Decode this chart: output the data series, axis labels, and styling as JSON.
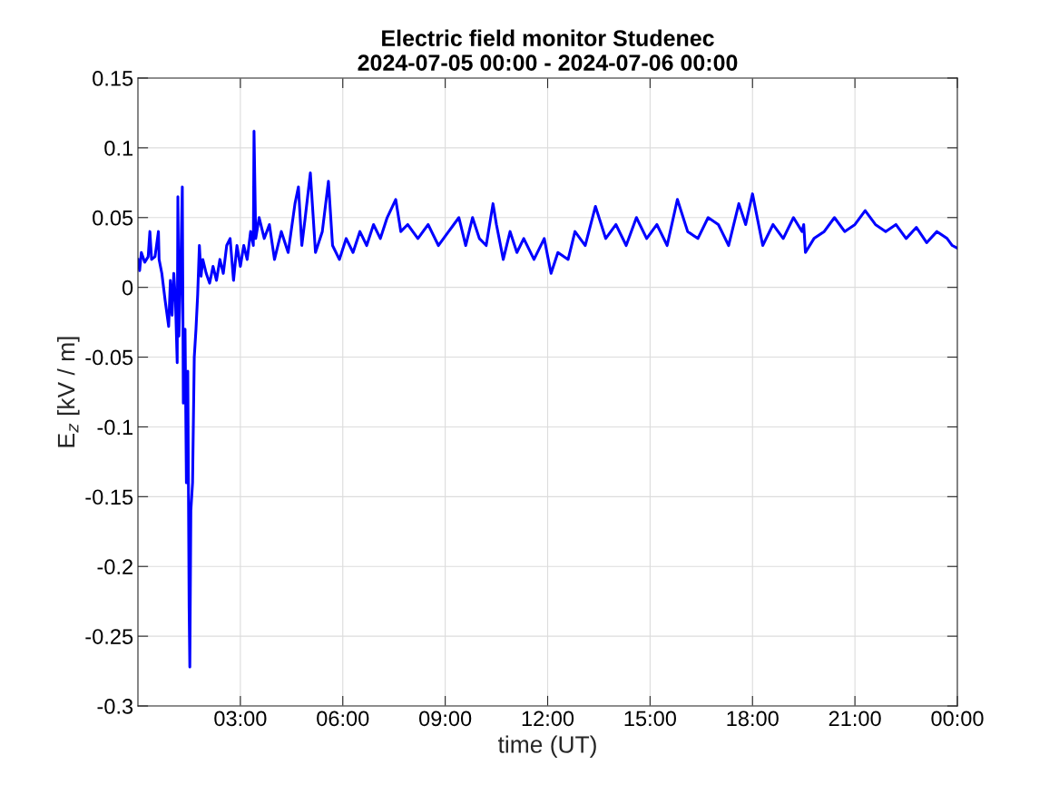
{
  "chart_data": {
    "type": "line",
    "title": "Electric field monitor Studenec\n2024-07-05 00:00 - 2024-07-06 00:00",
    "xlabel": "time (UT)",
    "ylabel": "E$_{z}$ [kV / m]",
    "xlim": [
      0,
      24
    ],
    "xticks": [
      {
        "value": 3,
        "label": "03:00"
      },
      {
        "value": 6,
        "label": "06:00"
      },
      {
        "value": 9,
        "label": "09:00"
      },
      {
        "value": 12,
        "label": "12:00"
      },
      {
        "value": 15,
        "label": "15:00"
      },
      {
        "value": 18,
        "label": "18:00"
      },
      {
        "value": 21,
        "label": "21:00"
      },
      {
        "value": 24,
        "label": "00:00"
      }
    ],
    "ylim": [
      -0.3,
      0.15
    ],
    "yticks": [
      {
        "value": -0.3,
        "label": "-0.3"
      },
      {
        "value": -0.25,
        "label": "-0.25"
      },
      {
        "value": -0.2,
        "label": "-0.2"
      },
      {
        "value": -0.15,
        "label": "-0.15"
      },
      {
        "value": -0.1,
        "label": "-0.1"
      },
      {
        "value": -0.05,
        "label": "-0.05"
      },
      {
        "value": 0,
        "label": "0"
      },
      {
        "value": 0.05,
        "label": "0.05"
      },
      {
        "value": 0.1,
        "label": "0.1"
      },
      {
        "value": 0.15,
        "label": "0.15"
      }
    ],
    "grid": true,
    "line_style": "solid",
    "series": [
      {
        "color": "#0000ff",
        "x": [
          0,
          0.05,
          0.1,
          0.2,
          0.3,
          0.35,
          0.4,
          0.5,
          0.6,
          0.62,
          0.7,
          0.8,
          0.9,
          0.95,
          1.0,
          1.05,
          1.1,
          1.15,
          1.17,
          1.2,
          1.25,
          1.3,
          1.33,
          1.38,
          1.42,
          1.46,
          1.5,
          1.52,
          1.55,
          1.6,
          1.65,
          1.7,
          1.75,
          1.8,
          1.85,
          1.9,
          2.0,
          2.1,
          2.2,
          2.3,
          2.4,
          2.5,
          2.6,
          2.7,
          2.8,
          2.9,
          3.0,
          3.1,
          3.2,
          3.3,
          3.38,
          3.4,
          3.45,
          3.55,
          3.7,
          3.85,
          4.0,
          4.2,
          4.4,
          4.6,
          4.7,
          4.8,
          4.9,
          5.05,
          5.2,
          5.4,
          5.58,
          5.7,
          5.9,
          6.1,
          6.3,
          6.5,
          6.7,
          6.9,
          7.1,
          7.3,
          7.55,
          7.7,
          7.9,
          8.2,
          8.5,
          8.8,
          9.1,
          9.4,
          9.6,
          9.8,
          10.0,
          10.2,
          10.4,
          10.5,
          10.7,
          10.9,
          11.1,
          11.3,
          11.6,
          11.9,
          12.1,
          12.3,
          12.6,
          12.8,
          13.1,
          13.4,
          13.7,
          14.0,
          14.3,
          14.6,
          14.9,
          15.2,
          15.5,
          15.8,
          16.1,
          16.4,
          16.7,
          17.0,
          17.3,
          17.6,
          17.8,
          18.0,
          18.3,
          18.6,
          18.9,
          19.2,
          19.45,
          19.5,
          19.55,
          19.8,
          20.1,
          20.4,
          20.7,
          21.0,
          21.3,
          21.6,
          21.9,
          22.2,
          22.5,
          22.8,
          23.1,
          23.4,
          23.7,
          23.85,
          24.0
        ],
        "values": [
          0.02,
          0.012,
          0.025,
          0.018,
          0.022,
          0.04,
          0.02,
          0.022,
          0.04,
          0.02,
          0.01,
          -0.01,
          -0.028,
          0.005,
          -0.02,
          0.01,
          -0.01,
          -0.054,
          0.065,
          -0.035,
          0.01,
          0.072,
          -0.083,
          -0.03,
          -0.14,
          -0.06,
          -0.23,
          -0.272,
          -0.16,
          -0.14,
          -0.05,
          -0.03,
          -0.005,
          0.03,
          0.008,
          0.02,
          0.01,
          0.003,
          0.015,
          0.005,
          0.02,
          0.01,
          0.03,
          0.035,
          0.005,
          0.03,
          0.015,
          0.03,
          0.02,
          0.04,
          0.03,
          0.112,
          0.035,
          0.05,
          0.035,
          0.045,
          0.02,
          0.04,
          0.025,
          0.06,
          0.072,
          0.03,
          0.05,
          0.082,
          0.025,
          0.04,
          0.076,
          0.03,
          0.02,
          0.035,
          0.025,
          0.04,
          0.03,
          0.045,
          0.035,
          0.05,
          0.063,
          0.04,
          0.045,
          0.035,
          0.045,
          0.03,
          0.04,
          0.05,
          0.03,
          0.05,
          0.035,
          0.03,
          0.06,
          0.045,
          0.02,
          0.04,
          0.025,
          0.035,
          0.02,
          0.035,
          0.01,
          0.025,
          0.02,
          0.04,
          0.03,
          0.058,
          0.035,
          0.045,
          0.03,
          0.05,
          0.035,
          0.045,
          0.03,
          0.063,
          0.04,
          0.035,
          0.05,
          0.045,
          0.03,
          0.06,
          0.045,
          0.067,
          0.03,
          0.045,
          0.035,
          0.05,
          0.04,
          0.045,
          0.025,
          0.035,
          0.04,
          0.05,
          0.04,
          0.045,
          0.055,
          0.045,
          0.04,
          0.045,
          0.035,
          0.043,
          0.032,
          0.04,
          0.035,
          0.03,
          0.028
        ]
      }
    ]
  }
}
